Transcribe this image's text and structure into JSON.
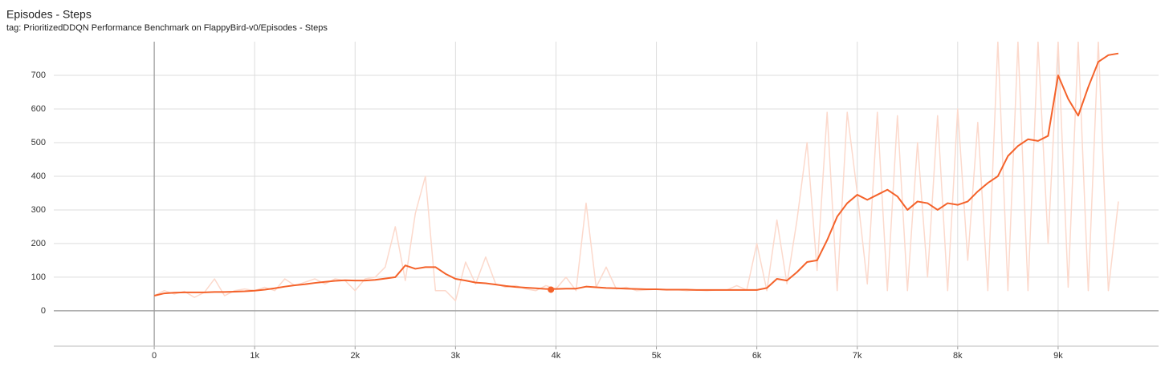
{
  "chart_data": {
    "type": "line",
    "title": "Episodes - Steps",
    "subtitle": "tag: PrioritizedDDQN Performance Benchmark on FlappyBird-v0/Episodes - Steps",
    "x": [
      0,
      100,
      200,
      300,
      400,
      500,
      600,
      700,
      800,
      900,
      1000,
      1100,
      1200,
      1300,
      1400,
      1500,
      1600,
      1700,
      1800,
      1900,
      2000,
      2100,
      2200,
      2300,
      2400,
      2500,
      2600,
      2700,
      2800,
      2900,
      3000,
      3100,
      3200,
      3300,
      3400,
      3500,
      3600,
      3700,
      3800,
      3900,
      4000,
      4100,
      4200,
      4300,
      4400,
      4500,
      4600,
      4700,
      4800,
      4900,
      5000,
      5100,
      5200,
      5300,
      5400,
      5500,
      5600,
      5700,
      5800,
      5900,
      6000,
      6100,
      6200,
      6300,
      6400,
      6500,
      6600,
      6700,
      6800,
      6900,
      7000,
      7100,
      7200,
      7300,
      7400,
      7500,
      7600,
      7700,
      7800,
      7900,
      8000,
      8100,
      8200,
      8300,
      8400,
      8500,
      8600,
      8700,
      8800,
      8900,
      9000,
      9100,
      9200,
      9300,
      9400,
      9500,
      9600
    ],
    "series": [
      {
        "color": "#fcd9cc",
        "values": [
          45,
          60,
          50,
          58,
          40,
          55,
          95,
          45,
          60,
          65,
          60,
          70,
          60,
          95,
          75,
          85,
          95,
          80,
          95,
          90,
          60,
          95,
          100,
          130,
          250,
          90,
          290,
          400,
          60,
          60,
          30,
          145,
          80,
          160,
          80,
          70,
          75,
          65,
          60,
          75,
          65,
          100,
          60,
          320,
          70,
          130,
          65,
          70,
          60,
          62,
          64,
          62,
          63,
          60,
          62,
          60,
          62,
          62,
          75,
          62,
          200,
          60,
          270,
          80,
          270,
          500,
          120,
          590,
          60,
          590,
          350,
          80,
          590,
          60,
          580,
          60,
          500,
          100,
          580,
          60,
          600,
          150,
          560,
          60,
          800,
          60,
          800,
          60,
          800,
          200,
          800,
          70,
          800,
          60,
          800,
          60,
          325
        ]
      },
      {
        "color": "#f4622a",
        "values": [
          45,
          52,
          54,
          55,
          55,
          55,
          56,
          56,
          57,
          58,
          60,
          63,
          67,
          72,
          76,
          79,
          83,
          86,
          89,
          91,
          90,
          90,
          92,
          96,
          100,
          135,
          125,
          130,
          130,
          110,
          95,
          90,
          84,
          82,
          78,
          74,
          71,
          69,
          67,
          65,
          65,
          66,
          66,
          72,
          70,
          68,
          67,
          66,
          65,
          64,
          64,
          63,
          63,
          63,
          62,
          62,
          62,
          62,
          62,
          62,
          62,
          68,
          95,
          90,
          115,
          145,
          150,
          210,
          280,
          320,
          345,
          330,
          345,
          360,
          340,
          300,
          325,
          320,
          300,
          320,
          315,
          325,
          355,
          380,
          400,
          460,
          490,
          510,
          505,
          520,
          700,
          630,
          580,
          665,
          740,
          760,
          765
        ]
      }
    ],
    "highlight": {
      "x": 3950,
      "y": 63,
      "color": "#f4622a"
    },
    "xlim": [
      -1000,
      10000
    ],
    "xticks": [
      0,
      {
        "value": 1000,
        "label": "1k"
      },
      {
        "value": 2000,
        "label": "2k"
      },
      {
        "value": 3000,
        "label": "3k"
      },
      {
        "value": 4000,
        "label": "4k"
      },
      {
        "value": 5000,
        "label": "5k"
      },
      {
        "value": 6000,
        "label": "6k"
      },
      {
        "value": 7000,
        "label": "7k"
      },
      {
        "value": 8000,
        "label": "8k"
      },
      {
        "value": 9000,
        "label": "9k"
      }
    ],
    "ylim": [
      -105,
      800
    ],
    "yticks": [
      0,
      100,
      200,
      300,
      400,
      500,
      600,
      700
    ],
    "grid": true
  }
}
